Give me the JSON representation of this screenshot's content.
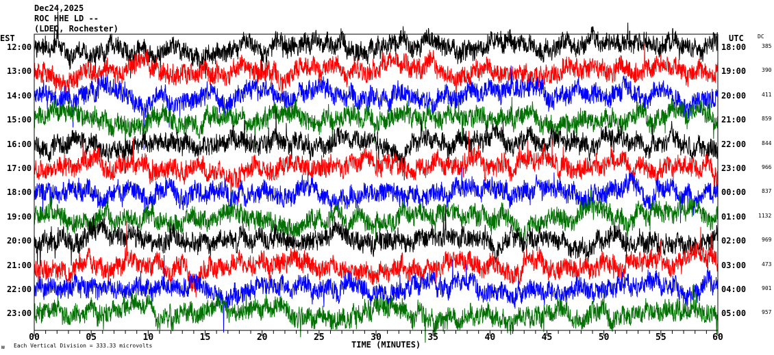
{
  "header": {
    "date": "Dec24,2025",
    "station": "ROC HHE LD --",
    "network": "(LDEO, Rochester)"
  },
  "left_axis_label": "EST",
  "right_axis_label": "UTC",
  "dc_label": "DC",
  "footer": {
    "scale_text": "Each Vertical Division =  333.33 microvolts",
    "corner_mark": "ᴍ"
  },
  "chart_data": {
    "type": "line",
    "title": "ROC HHE LD -- helicorder Dec24,2025",
    "xlabel": "TIME (MINUTES)",
    "xlim": [
      0,
      60
    ],
    "xticks": [
      "00",
      "05",
      "10",
      "15",
      "20",
      "25",
      "30",
      "35",
      "40",
      "45",
      "50",
      "55",
      "60"
    ],
    "colors": [
      "#000000",
      "#ff0000",
      "#0000ff",
      "#007000"
    ],
    "series": [
      {
        "est": "12:00",
        "utc": "18:00",
        "dc": "385"
      },
      {
        "est": "13:00",
        "utc": "19:00",
        "dc": "390"
      },
      {
        "est": "14:00",
        "utc": "20:00",
        "dc": "411"
      },
      {
        "est": "15:00",
        "utc": "21:00",
        "dc": "859"
      },
      {
        "est": "16:00",
        "utc": "22:00",
        "dc": "844"
      },
      {
        "est": "17:00",
        "utc": "23:00",
        "dc": "966"
      },
      {
        "est": "18:00",
        "utc": "00:00",
        "dc": "837"
      },
      {
        "est": "19:00",
        "utc": "01:00",
        "dc": "1132"
      },
      {
        "est": "20:00",
        "utc": "02:00",
        "dc": "969"
      },
      {
        "est": "21:00",
        "utc": "03:00",
        "dc": "473"
      },
      {
        "est": "22:00",
        "utc": "04:00",
        "dc": "901"
      },
      {
        "est": "23:00",
        "utc": "05:00",
        "dc": "957"
      }
    ]
  }
}
